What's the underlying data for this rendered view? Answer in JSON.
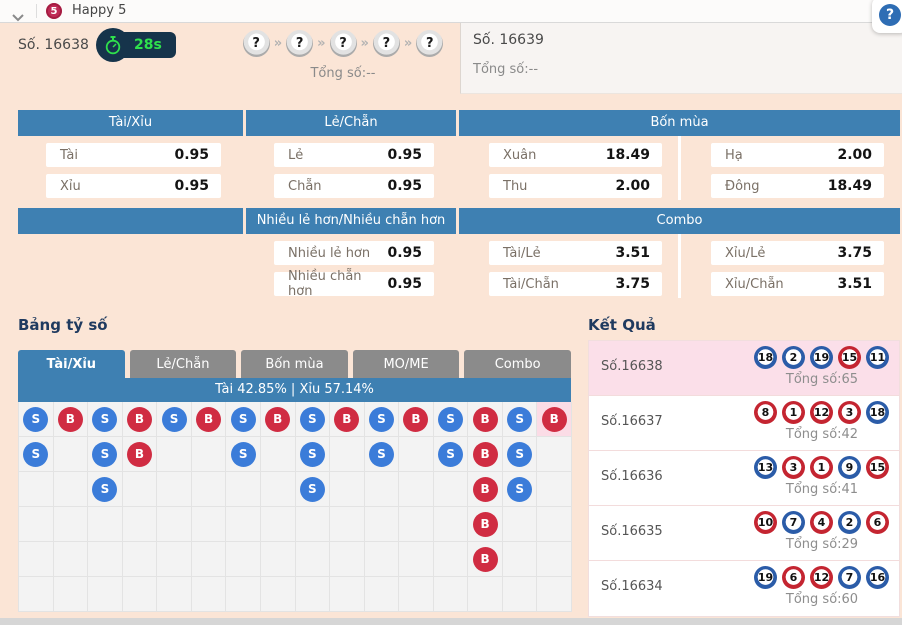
{
  "topbar": {
    "title": "Happy 5",
    "logo_text": "5",
    "help_label": "?"
  },
  "header": {
    "current_label": "Số. 16638",
    "timer": "28s",
    "mystery_balls": [
      "?",
      "?",
      "?",
      "?",
      "?"
    ],
    "total_label": "Tổng số:--",
    "next_label": "Số. 16639",
    "next_total_label": "Tổng số:--"
  },
  "odds_row1": [
    {
      "title": "Tài/Xỉu",
      "cols": 1,
      "bets": [
        {
          "label": "Tài",
          "odds": "0.95"
        },
        {
          "label": "Xỉu",
          "odds": "0.95"
        }
      ]
    },
    {
      "title": "Lẻ/Chẵn",
      "cols": 1,
      "bets": [
        {
          "label": "Lẻ",
          "odds": "0.95"
        },
        {
          "label": "Chẵn",
          "odds": "0.95"
        }
      ]
    },
    {
      "title": "Bốn mùa",
      "cols": 2,
      "bets": [
        {
          "label": "Xuân",
          "odds": "18.49"
        },
        {
          "label": "Hạ",
          "odds": "2.00"
        },
        {
          "label": "Thu",
          "odds": "2.00"
        },
        {
          "label": "Đông",
          "odds": "18.49"
        }
      ]
    }
  ],
  "odds_row2": [
    {
      "title": "",
      "cols": 1,
      "bets": []
    },
    {
      "title": "Nhiều lẻ hơn/Nhiều chẵn hơn",
      "cols": 1,
      "bets": [
        {
          "label": "Nhiều lẻ hơn",
          "odds": "0.95"
        },
        {
          "label": "Nhiều chẵn hơn",
          "odds": "0.95"
        }
      ]
    },
    {
      "title": "Combo",
      "cols": 2,
      "bets": [
        {
          "label": "Tài/Lẻ",
          "odds": "3.51"
        },
        {
          "label": "Xỉu/Lẻ",
          "odds": "3.75"
        },
        {
          "label": "Tài/Chẵn",
          "odds": "3.75"
        },
        {
          "label": "Xỉu/Chẵn",
          "odds": "3.51"
        }
      ]
    }
  ],
  "scoreboard": {
    "title": "Bảng tỷ số",
    "tabs": [
      {
        "label": "Tài/Xỉu",
        "active": true
      },
      {
        "label": "Lẻ/Chẵn",
        "active": false
      },
      {
        "label": "Bốn mùa",
        "active": false
      },
      {
        "label": "MO/ME",
        "active": false
      },
      {
        "label": "Combo",
        "active": false
      }
    ],
    "summary": "Tài 42.85% | Xỉu 57.14%",
    "grid_rows": [
      "SBSBSBSBSBSBSBSB",
      "S.SB..S.S.S.SBS.",
      "..S.....S....BS.",
      ".............B..",
      ".............B..",
      "................"
    ],
    "highlight": {
      "row": 0,
      "col": 15
    },
    "legend": {
      "S": "small - blue ball",
      "B": "big - red ball"
    }
  },
  "results": {
    "title": "Kết Quả",
    "total_prefix": "Tổng số:",
    "rows": [
      {
        "label": "Số.16638",
        "total": 65,
        "highlight": true,
        "balls": [
          {
            "n": 18,
            "c": "blue"
          },
          {
            "n": 2,
            "c": "blue"
          },
          {
            "n": 19,
            "c": "blue"
          },
          {
            "n": 15,
            "c": "red"
          },
          {
            "n": 11,
            "c": "blue"
          }
        ]
      },
      {
        "label": "Số.16637",
        "total": 42,
        "highlight": false,
        "balls": [
          {
            "n": 8,
            "c": "red"
          },
          {
            "n": 1,
            "c": "red"
          },
          {
            "n": 12,
            "c": "red"
          },
          {
            "n": 3,
            "c": "red"
          },
          {
            "n": 18,
            "c": "blue"
          }
        ]
      },
      {
        "label": "Số.16636",
        "total": 41,
        "highlight": false,
        "balls": [
          {
            "n": 13,
            "c": "blue"
          },
          {
            "n": 3,
            "c": "red"
          },
          {
            "n": 1,
            "c": "red"
          },
          {
            "n": 9,
            "c": "blue"
          },
          {
            "n": 15,
            "c": "red"
          }
        ]
      },
      {
        "label": "Số.16635",
        "total": 29,
        "highlight": false,
        "balls": [
          {
            "n": 10,
            "c": "red"
          },
          {
            "n": 7,
            "c": "blue"
          },
          {
            "n": 4,
            "c": "red"
          },
          {
            "n": 2,
            "c": "blue"
          },
          {
            "n": 6,
            "c": "red"
          }
        ]
      },
      {
        "label": "Số.16634",
        "total": 60,
        "highlight": false,
        "balls": [
          {
            "n": 19,
            "c": "blue"
          },
          {
            "n": 6,
            "c": "red"
          },
          {
            "n": 12,
            "c": "red"
          },
          {
            "n": 7,
            "c": "blue"
          },
          {
            "n": 16,
            "c": "blue"
          }
        ]
      }
    ]
  },
  "colors": {
    "accent_blue": "#3e80b2",
    "background_peach": "#fbe5d6",
    "timer_green": "#2fe14c",
    "highlight_pink": "#fbdce6",
    "small_ball_blue": "#3b7cd9",
    "big_ball_red": "#d02c42",
    "result_ring_blue": "#2b5ca8",
    "result_ring_red": "#c42531"
  }
}
